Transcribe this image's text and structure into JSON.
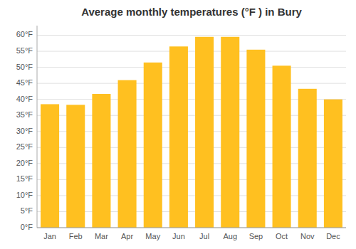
{
  "chart_data": {
    "type": "bar",
    "title": "Average monthly temperatures (°F ) in Bury",
    "categories": [
      "Jan",
      "Feb",
      "Mar",
      "Apr",
      "May",
      "Jun",
      "Jul",
      "Aug",
      "Sep",
      "Oct",
      "Nov",
      "Dec"
    ],
    "values": [
      38.5,
      38.3,
      41.7,
      46.0,
      51.5,
      56.5,
      59.5,
      59.5,
      55.5,
      50.5,
      43.3,
      40.0
    ],
    "color": "#FFC020",
    "ylim": [
      0,
      63
    ],
    "yticks": [
      {
        "value": 0,
        "label": "0°F"
      },
      {
        "value": 5,
        "label": "5°F"
      },
      {
        "value": 10,
        "label": "10°F"
      },
      {
        "value": 15,
        "label": "15°F"
      },
      {
        "value": 20,
        "label": "20°F"
      },
      {
        "value": 25,
        "label": "25°F"
      },
      {
        "value": 30,
        "label": "30°F"
      },
      {
        "value": 35,
        "label": "35°F"
      },
      {
        "value": 40,
        "label": "40°F"
      },
      {
        "value": 45,
        "label": "45°F"
      },
      {
        "value": 50,
        "label": "50°F"
      },
      {
        "value": 55,
        "label": "55°F"
      },
      {
        "value": 60,
        "label": "60°F"
      }
    ],
    "grid": true
  }
}
